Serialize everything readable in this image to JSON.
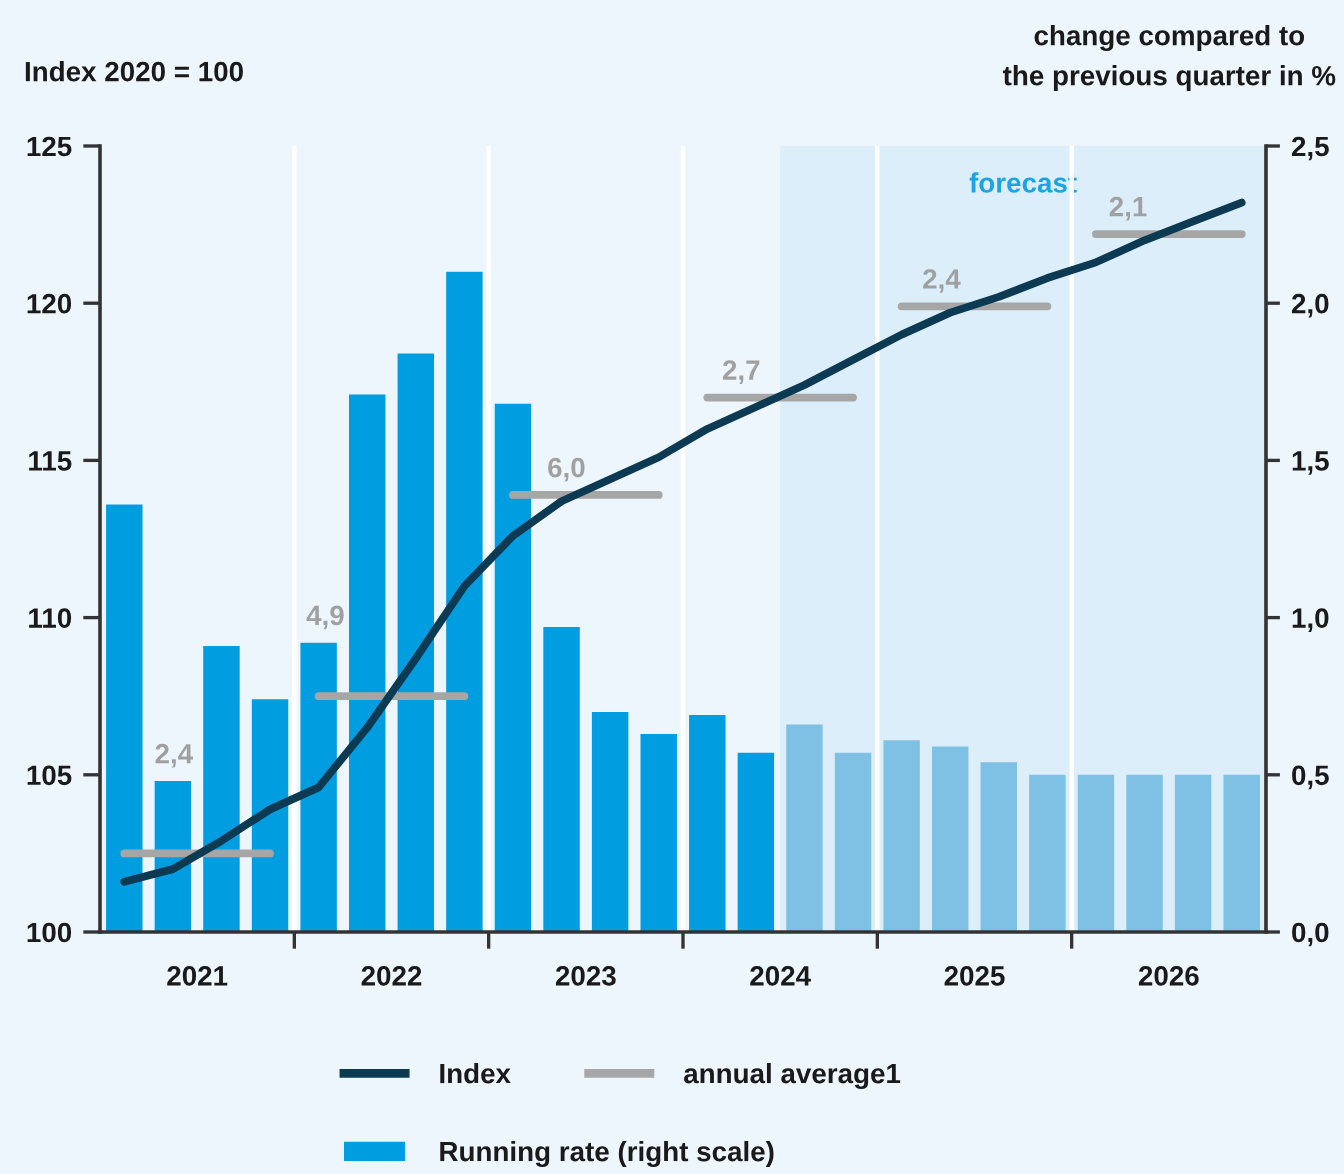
{
  "chart_data": {
    "type": "bar",
    "ylabel": "Index 2020 = 100",
    "y2label": "change compared to\nthe previous quarter in %",
    "x": [
      2021.125,
      2021.375,
      2021.625,
      2021.875,
      2022.125,
      2022.375,
      2022.625,
      2022.875,
      2023.125,
      2023.375,
      2023.625,
      2023.875,
      2024.125,
      2024.375,
      2024.625,
      2024.875,
      2025.125,
      2025.375,
      2025.625,
      2025.875,
      2026.125,
      2026.375,
      2026.625,
      2026.875
    ],
    "xlim": [
      2021,
      2027
    ],
    "xticks": [
      {
        "value": 2021.5,
        "label": "2021"
      },
      {
        "value": 2022,
        "label": null
      },
      {
        "value": 2022.5,
        "label": "2022"
      },
      {
        "value": 2023,
        "label": null
      },
      {
        "value": 2023.5,
        "label": "2023"
      },
      {
        "value": 2024,
        "label": null
      },
      {
        "value": 2024.5,
        "label": "2024"
      },
      {
        "value": 2025,
        "label": null
      },
      {
        "value": 2025.5,
        "label": "2025"
      },
      {
        "value": 2026,
        "label": null
      },
      {
        "value": 2026.5,
        "label": "2026"
      }
    ],
    "ylim": [
      100,
      125
    ],
    "yticks": [
      100,
      105,
      110,
      115,
      120,
      125
    ],
    "y2lim": [
      0,
      2.5
    ],
    "y2ticks": [
      {
        "value": 0,
        "label": "0,0"
      },
      {
        "value": 0.5,
        "label": "0,5"
      },
      {
        "value": 1,
        "label": "1,0"
      },
      {
        "value": 1.5,
        "label": "1,5"
      },
      {
        "value": 2,
        "label": "2,0"
      },
      {
        "value": 2.5,
        "label": "2,5"
      }
    ],
    "series": [
      {
        "name": "Index",
        "type": "line",
        "color": "#0c3a52",
        "values": [
          101.6,
          102.0,
          102.9,
          103.9,
          104.6,
          106.5,
          108.7,
          111.0,
          112.6,
          113.7,
          114.4,
          115.1,
          116.0,
          116.7,
          117.4,
          118.2,
          119.0,
          119.7,
          120.2,
          120.8,
          121.3,
          122.0,
          122.6,
          123.2
        ]
      },
      {
        "name": "Running rate (right scale)",
        "axis": "y2",
        "color": "#009de0",
        "colors": [
          "#009de0",
          "#009de0",
          "#009de0",
          "#009de0",
          "#009de0",
          "#009de0",
          "#009de0",
          "#009de0",
          "#009de0",
          "#009de0",
          "#009de0",
          "#009de0",
          "#009de0",
          "#009de0",
          "#7fc1e5",
          "#7fc1e5",
          "#7fc1e5",
          "#7fc1e5",
          "#7fc1e5",
          "#7fc1e5",
          "#7fc1e5",
          "#7fc1e5",
          "#7fc1e5",
          "#7fc1e5"
        ],
        "values": [
          1.36,
          0.48,
          0.91,
          0.74,
          0.92,
          1.71,
          1.84,
          2.1,
          1.68,
          0.97,
          0.7,
          0.63,
          0.69,
          0.57,
          0.66,
          0.57,
          0.61,
          0.59,
          0.54,
          0.5,
          0.5,
          0.5,
          0.5,
          0.5
        ]
      },
      {
        "name": "annual average1",
        "type": "line",
        "color": "#a6a6a6",
        "x": [
          2021.125,
          2021.875,
          2022.0,
          2022.125,
          2022.875,
          2023.0,
          2023.125,
          2023.875,
          2024.0,
          2024.125,
          2024.875,
          2025.0,
          2025.125,
          2025.875,
          2026.0,
          2026.125,
          2026.875
        ],
        "values": [
          102.5,
          102.5,
          null,
          107.5,
          107.5,
          null,
          113.9,
          113.9,
          null,
          117.0,
          117.0,
          null,
          119.9,
          119.9,
          null,
          122.2,
          122.2
        ]
      }
    ],
    "bands": [
      {
        "axis": "x",
        "from": 2024.5,
        "to": 2027,
        "label": "forecast",
        "color": "#dbeefa"
      }
    ],
    "annotations": [
      {
        "text": "2,4",
        "x": 2021.38,
        "y": 104.8
      },
      {
        "text": "4,9",
        "x": 2022.16,
        "y": 109.2
      },
      {
        "text": "6,0",
        "x": 2023.4,
        "y": 113.9
      },
      {
        "text": "2,7",
        "x": 2024.3,
        "y": 117.0
      },
      {
        "text": "2,4",
        "x": 2025.33,
        "y": 119.9
      },
      {
        "text": "2,1",
        "x": 2026.29,
        "y": 122.2
      }
    ],
    "grid": "x",
    "legend": "bottom"
  }
}
